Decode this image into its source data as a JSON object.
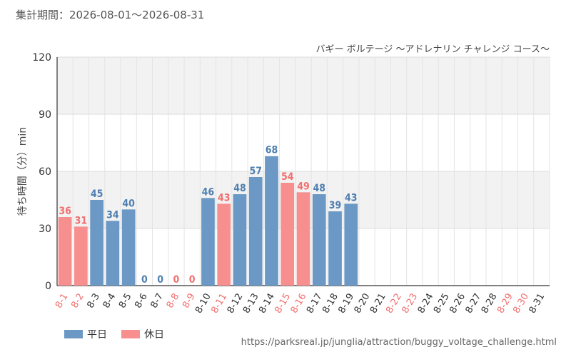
{
  "header": {
    "period": "集計期間：2026-08-01～2026-08-31"
  },
  "footer": {
    "url": "https://parksreal.jp/junglia/attraction/buggy_voltage_challenge.html"
  },
  "colors": {
    "weekday": "#6b98c4",
    "holiday": "#f78f8f",
    "label_weekday": "#4f7fb0",
    "label_holiday": "#f26f6f"
  },
  "chart_data": {
    "type": "bar",
    "title": "バギー ボルテージ ～アドレナリン チャレンジ コース～",
    "ylabel": "待ち時間（分）min",
    "xlabel": "",
    "ylim": [
      0,
      120
    ],
    "yticks": [
      "0",
      "30",
      "60",
      "90",
      "120"
    ],
    "grid": true,
    "legend": "bottom-left",
    "categories": [
      "8-1",
      "8-2",
      "8-3",
      "8-4",
      "8-5",
      "8-6",
      "8-7",
      "8-8",
      "8-9",
      "8-10",
      "8-11",
      "8-12",
      "8-13",
      "8-14",
      "8-15",
      "8-16",
      "8-17",
      "8-18",
      "8-19",
      "8-20",
      "8-21",
      "8-22",
      "8-23",
      "8-24",
      "8-25",
      "8-26",
      "8-27",
      "8-28",
      "8-29",
      "8-30",
      "8-31"
    ],
    "holiday_flags": [
      true,
      true,
      false,
      false,
      false,
      false,
      false,
      true,
      true,
      false,
      true,
      false,
      false,
      false,
      true,
      true,
      false,
      false,
      false,
      false,
      false,
      true,
      true,
      false,
      false,
      false,
      false,
      false,
      true,
      true,
      false
    ],
    "series": [
      {
        "name": "平日",
        "values": [
          null,
          null,
          45,
          34,
          40,
          0,
          0,
          null,
          null,
          46,
          null,
          48,
          57,
          68,
          null,
          null,
          48,
          39,
          43,
          null,
          null,
          null,
          null,
          null,
          null,
          null,
          null,
          null,
          null,
          null,
          null
        ]
      },
      {
        "name": "休日",
        "values": [
          36,
          31,
          null,
          null,
          null,
          null,
          null,
          0,
          0,
          null,
          43,
          null,
          null,
          null,
          54,
          49,
          null,
          null,
          null,
          null,
          null,
          null,
          null,
          null,
          null,
          null,
          null,
          null,
          null,
          null,
          null
        ]
      }
    ]
  }
}
